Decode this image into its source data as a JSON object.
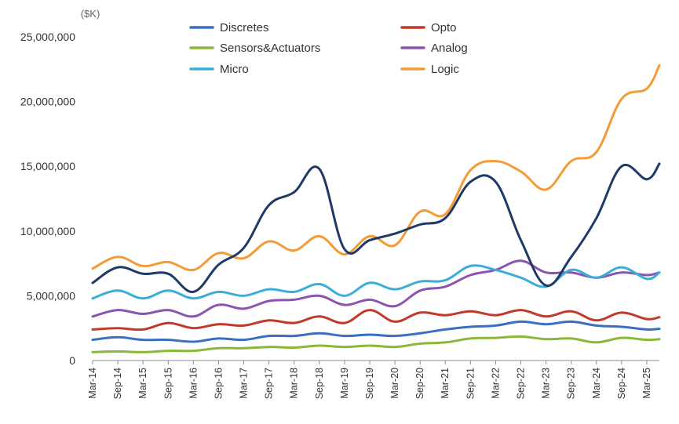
{
  "chart_data": {
    "type": "line",
    "unit_label": "($K)",
    "ylim": [
      0,
      25000000
    ],
    "yticks": [
      0,
      5000000,
      10000000,
      15000000,
      20000000,
      25000000
    ],
    "ytick_labels": [
      "0",
      "5,000,000",
      "10,000,000",
      "15,000,000",
      "20,000,000",
      "25,000,000"
    ],
    "x_start": "Mar-14",
    "x_end": "Jun-25",
    "xtick_labels": [
      "Mar-14",
      "Sep-14",
      "Mar-15",
      "Sep-15",
      "Mar-16",
      "Sep-16",
      "Mar-17",
      "Sep-17",
      "Mar-18",
      "Sep-18",
      "Mar-19",
      "Sep-19",
      "Mar-20",
      "Sep-20",
      "Mar-21",
      "Sep-21",
      "Mar-22",
      "Sep-22",
      "Mar-23",
      "Sep-23",
      "Mar-24",
      "Sep-24",
      "Mar-25"
    ],
    "grid": false,
    "legend_position": "top",
    "series": [
      {
        "name": "Discretes",
        "color": "#3a6fc0",
        "points": [
          [
            "Mar-14",
            1600000
          ],
          [
            "Sep-14",
            1800000
          ],
          [
            "Mar-15",
            1600000
          ],
          [
            "Sep-15",
            1600000
          ],
          [
            "Mar-16",
            1450000
          ],
          [
            "Sep-16",
            1700000
          ],
          [
            "Mar-17",
            1600000
          ],
          [
            "Sep-17",
            1900000
          ],
          [
            "Mar-18",
            1900000
          ],
          [
            "Sep-18",
            2100000
          ],
          [
            "Mar-19",
            1900000
          ],
          [
            "Sep-19",
            2000000
          ],
          [
            "Mar-20",
            1900000
          ],
          [
            "Sep-20",
            2100000
          ],
          [
            "Mar-21",
            2400000
          ],
          [
            "Sep-21",
            2600000
          ],
          [
            "Mar-22",
            2700000
          ],
          [
            "Sep-22",
            3000000
          ],
          [
            "Mar-23",
            2800000
          ],
          [
            "Sep-23",
            3000000
          ],
          [
            "Mar-24",
            2700000
          ],
          [
            "Sep-24",
            2600000
          ],
          [
            "Mar-25",
            2400000
          ],
          [
            "Jun-25",
            2450000
          ]
        ]
      },
      {
        "name": "Opto",
        "color": "#c0392b",
        "points": [
          [
            "Mar-14",
            2400000
          ],
          [
            "Sep-14",
            2500000
          ],
          [
            "Mar-15",
            2400000
          ],
          [
            "Sep-15",
            2900000
          ],
          [
            "Mar-16",
            2500000
          ],
          [
            "Sep-16",
            2800000
          ],
          [
            "Mar-17",
            2700000
          ],
          [
            "Sep-17",
            3100000
          ],
          [
            "Mar-18",
            2900000
          ],
          [
            "Sep-18",
            3400000
          ],
          [
            "Mar-19",
            2900000
          ],
          [
            "Sep-19",
            3900000
          ],
          [
            "Mar-20",
            3000000
          ],
          [
            "Sep-20",
            3700000
          ],
          [
            "Mar-21",
            3500000
          ],
          [
            "Sep-21",
            3800000
          ],
          [
            "Mar-22",
            3500000
          ],
          [
            "Sep-22",
            3900000
          ],
          [
            "Mar-23",
            3400000
          ],
          [
            "Sep-23",
            3800000
          ],
          [
            "Mar-24",
            3100000
          ],
          [
            "Sep-24",
            3700000
          ],
          [
            "Mar-25",
            3200000
          ],
          [
            "Jun-25",
            3350000
          ]
        ]
      },
      {
        "name": "Sensors&Actuators",
        "color": "#8cb83a",
        "points": [
          [
            "Mar-14",
            650000
          ],
          [
            "Sep-14",
            700000
          ],
          [
            "Mar-15",
            650000
          ],
          [
            "Sep-15",
            750000
          ],
          [
            "Mar-16",
            750000
          ],
          [
            "Sep-16",
            950000
          ],
          [
            "Mar-17",
            950000
          ],
          [
            "Sep-17",
            1050000
          ],
          [
            "Mar-18",
            1000000
          ],
          [
            "Sep-18",
            1150000
          ],
          [
            "Mar-19",
            1050000
          ],
          [
            "Sep-19",
            1150000
          ],
          [
            "Mar-20",
            1050000
          ],
          [
            "Sep-20",
            1300000
          ],
          [
            "Mar-21",
            1400000
          ],
          [
            "Sep-21",
            1700000
          ],
          [
            "Mar-22",
            1750000
          ],
          [
            "Sep-22",
            1850000
          ],
          [
            "Mar-23",
            1650000
          ],
          [
            "Sep-23",
            1700000
          ],
          [
            "Mar-24",
            1400000
          ],
          [
            "Sep-24",
            1750000
          ],
          [
            "Mar-25",
            1600000
          ],
          [
            "Jun-25",
            1650000
          ]
        ]
      },
      {
        "name": "Analog",
        "color": "#8a55b0",
        "points": [
          [
            "Mar-14",
            3400000
          ],
          [
            "Sep-14",
            3900000
          ],
          [
            "Mar-15",
            3600000
          ],
          [
            "Sep-15",
            3900000
          ],
          [
            "Mar-16",
            3400000
          ],
          [
            "Sep-16",
            4300000
          ],
          [
            "Mar-17",
            4000000
          ],
          [
            "Sep-17",
            4600000
          ],
          [
            "Mar-18",
            4700000
          ],
          [
            "Sep-18",
            5000000
          ],
          [
            "Mar-19",
            4300000
          ],
          [
            "Sep-19",
            4700000
          ],
          [
            "Mar-20",
            4200000
          ],
          [
            "Sep-20",
            5400000
          ],
          [
            "Mar-21",
            5700000
          ],
          [
            "Sep-21",
            6600000
          ],
          [
            "Mar-22",
            7000000
          ],
          [
            "Sep-22",
            7700000
          ],
          [
            "Mar-23",
            6800000
          ],
          [
            "Sep-23",
            6800000
          ],
          [
            "Mar-24",
            6400000
          ],
          [
            "Sep-24",
            6800000
          ],
          [
            "Mar-25",
            6600000
          ],
          [
            "Jun-25",
            6800000
          ]
        ]
      },
      {
        "name": "Micro",
        "color": "#3aaed8",
        "points": [
          [
            "Mar-14",
            4800000
          ],
          [
            "Sep-14",
            5400000
          ],
          [
            "Mar-15",
            4800000
          ],
          [
            "Sep-15",
            5400000
          ],
          [
            "Mar-16",
            4800000
          ],
          [
            "Sep-16",
            5300000
          ],
          [
            "Mar-17",
            5000000
          ],
          [
            "Sep-17",
            5500000
          ],
          [
            "Mar-18",
            5300000
          ],
          [
            "Sep-18",
            5900000
          ],
          [
            "Mar-19",
            5000000
          ],
          [
            "Sep-19",
            6000000
          ],
          [
            "Mar-20",
            5500000
          ],
          [
            "Sep-20",
            6100000
          ],
          [
            "Mar-21",
            6200000
          ],
          [
            "Sep-21",
            7300000
          ],
          [
            "Mar-22",
            7000000
          ],
          [
            "Sep-22",
            6400000
          ],
          [
            "Mar-23",
            5700000
          ],
          [
            "Sep-23",
            7000000
          ],
          [
            "Mar-24",
            6400000
          ],
          [
            "Sep-24",
            7200000
          ],
          [
            "Mar-25",
            6300000
          ],
          [
            "Jun-25",
            6800000
          ]
        ]
      },
      {
        "name": "Logic",
        "color": "#f39b36",
        "points": [
          [
            "Mar-14",
            7100000
          ],
          [
            "Sep-14",
            8000000
          ],
          [
            "Mar-15",
            7300000
          ],
          [
            "Sep-15",
            7600000
          ],
          [
            "Mar-16",
            7000000
          ],
          [
            "Sep-16",
            8300000
          ],
          [
            "Mar-17",
            7900000
          ],
          [
            "Sep-17",
            9200000
          ],
          [
            "Mar-18",
            8500000
          ],
          [
            "Sep-18",
            9600000
          ],
          [
            "Mar-19",
            8200000
          ],
          [
            "Sep-19",
            9600000
          ],
          [
            "Mar-20",
            8900000
          ],
          [
            "Sep-20",
            11500000
          ],
          [
            "Mar-21",
            11300000
          ],
          [
            "Sep-21",
            14700000
          ],
          [
            "Mar-22",
            15400000
          ],
          [
            "Sep-22",
            14600000
          ],
          [
            "Mar-23",
            13200000
          ],
          [
            "Sep-23",
            15400000
          ],
          [
            "Mar-24",
            16100000
          ],
          [
            "Sep-24",
            20200000
          ],
          [
            "Mar-25",
            21000000
          ],
          [
            "Jun-25",
            22800000
          ]
        ]
      },
      {
        "name": "",
        "color": "#1f3a68",
        "points": [
          [
            "Mar-14",
            6000000
          ],
          [
            "Sep-14",
            7200000
          ],
          [
            "Mar-15",
            6700000
          ],
          [
            "Sep-15",
            6700000
          ],
          [
            "Mar-16",
            5300000
          ],
          [
            "Sep-16",
            7400000
          ],
          [
            "Mar-17",
            8700000
          ],
          [
            "Sep-17",
            12000000
          ],
          [
            "Mar-18",
            13000000
          ],
          [
            "Sep-18",
            14800000
          ],
          [
            "Mar-19",
            8600000
          ],
          [
            "Sep-19",
            9300000
          ],
          [
            "Mar-20",
            9800000
          ],
          [
            "Sep-20",
            10500000
          ],
          [
            "Mar-21",
            11000000
          ],
          [
            "Sep-21",
            13800000
          ],
          [
            "Mar-22",
            13800000
          ],
          [
            "Sep-22",
            9300000
          ],
          [
            "Mar-23",
            5800000
          ],
          [
            "Sep-23",
            8000000
          ],
          [
            "Mar-24",
            11000000
          ],
          [
            "Sep-24",
            15000000
          ],
          [
            "Mar-25",
            14000000
          ],
          [
            "Jun-25",
            15200000
          ]
        ]
      }
    ],
    "legend": [
      {
        "name": "Discretes",
        "color": "#3a6fc0"
      },
      {
        "name": "Opto",
        "color": "#c0392b"
      },
      {
        "name": "Sensors&Actuators",
        "color": "#8cb83a"
      },
      {
        "name": "Analog",
        "color": "#8a55b0"
      },
      {
        "name": "Micro",
        "color": "#3aaed8"
      },
      {
        "name": "Logic",
        "color": "#f39b36"
      }
    ]
  }
}
